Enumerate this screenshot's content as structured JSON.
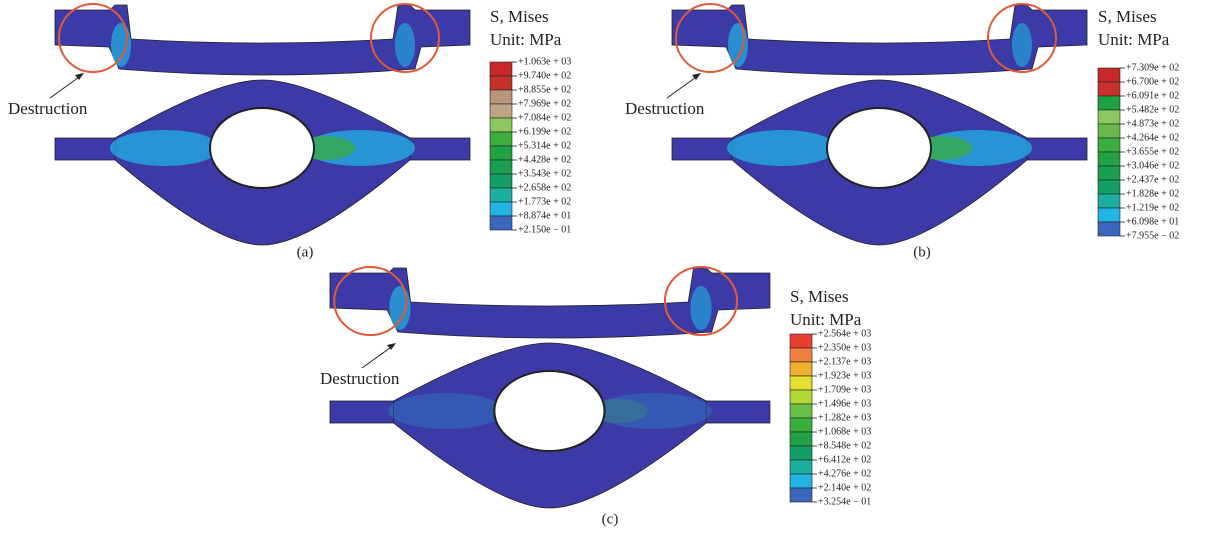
{
  "panels": [
    {
      "label": "(a)",
      "annotation": "Destruction",
      "legend": {
        "title": "S, Mises",
        "unit": "Unit: MPa",
        "labels": [
          "+1.063e + 03",
          "+9.740e + 02",
          "+8.855e + 02",
          "+7.969e + 02",
          "+7.084e + 02",
          "+6.199e + 02",
          "+5.314e + 02",
          "+4.428e + 02",
          "+3.543e + 02",
          "+2.658e + 02",
          "+1.773e + 02",
          "+8.874e + 01",
          "+2.150e − 01"
        ],
        "colors": [
          "#c8282a",
          "#c8302c",
          "#b8957c",
          "#c0a584",
          "#8cc860",
          "#3aae3e",
          "#22a244",
          "#18a050",
          "#12a068",
          "#1cae9e",
          "#22b4e4",
          "#3a66bc",
          "#3a3aa4"
        ]
      }
    },
    {
      "label": "(b)",
      "annotation": "Destruction",
      "legend": {
        "title": "S, Mises",
        "unit": "Unit: MPa",
        "labels": [
          "+7.309e + 02",
          "+6.700e + 02",
          "+6.091e + 02",
          "+5.482e + 02",
          "+4.873e + 02",
          "+4.264e + 02",
          "+3.655e + 02",
          "+3.046e + 02",
          "+2.437e + 02",
          "+1.828e + 02",
          "+1.219e + 02",
          "+6.098e + 01",
          "+7.955e − 02"
        ],
        "colors": [
          "#c8282a",
          "#c8302c",
          "#1ea044",
          "#8cc860",
          "#6ab84c",
          "#3aae3e",
          "#22a244",
          "#18a050",
          "#12a068",
          "#1cae9e",
          "#22b4e4",
          "#3a66bc",
          "#3a3aa4"
        ]
      }
    },
    {
      "label": "(c)",
      "annotation": "Destruction",
      "legend": {
        "title": "S, Mises",
        "unit": "Unit: MPa",
        "labels": [
          "+2.564e + 03",
          "+2.350e + 03",
          "+2.137e + 03",
          "+1.923e + 03",
          "+1.709e + 03",
          "+1.496e + 03",
          "+1.282e + 03",
          "+1.068e + 03",
          "+8.548e + 02",
          "+6.412e + 02",
          "+4.276e + 02",
          "+2.140e + 02",
          "+3.254e − 01"
        ],
        "colors": [
          "#e84030",
          "#f08040",
          "#f0b030",
          "#e8e030",
          "#b0d838",
          "#6ac048",
          "#3aae3e",
          "#22a244",
          "#12a068",
          "#1cae9e",
          "#22b4e4",
          "#3a66bc",
          "#3a3aa4"
        ]
      }
    }
  ]
}
